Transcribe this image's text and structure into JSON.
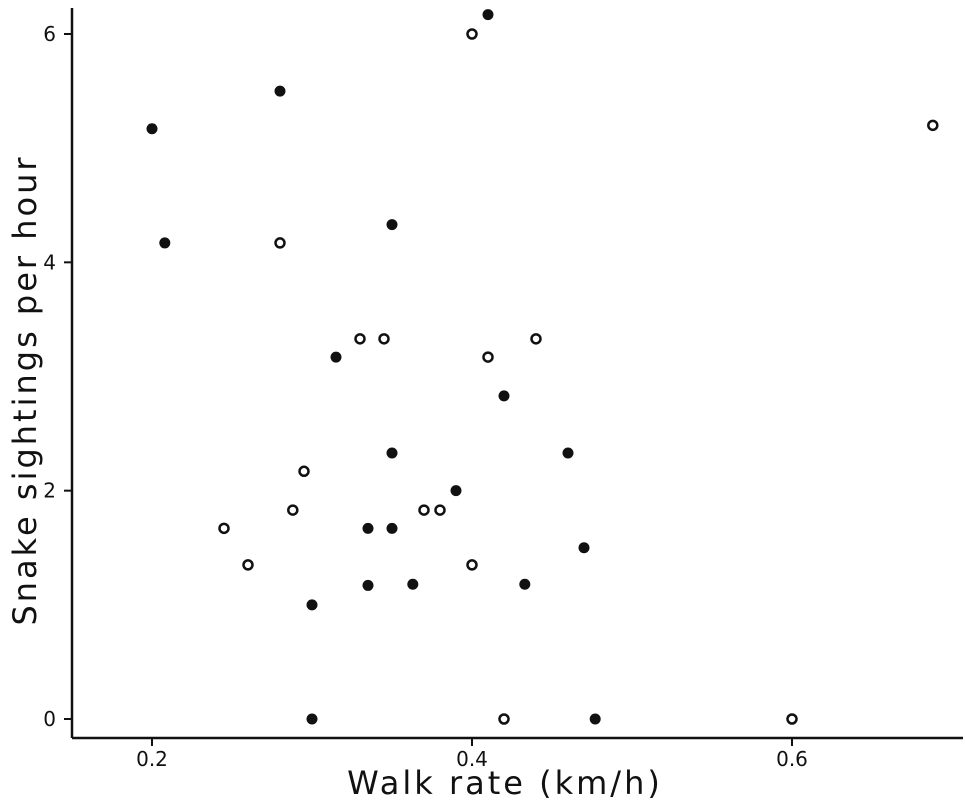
{
  "chart_data": {
    "type": "scatter",
    "title": "",
    "xlabel": "Walk rate (km/h)",
    "ylabel": "Snake sightings per hour",
    "xlim": [
      0.15,
      0.7
    ],
    "ylim": [
      -0.15,
      6.2
    ],
    "x_ticks": [
      0.2,
      0.4,
      0.6
    ],
    "x_tick_labels": [
      "0.2",
      "0.4",
      "0.6"
    ],
    "y_ticks": [
      0,
      2,
      4,
      6
    ],
    "y_tick_labels": [
      "0",
      "2",
      "4",
      "6"
    ],
    "grid": false,
    "series": [
      {
        "marker": "filled-circle",
        "color": "#111111",
        "points": [
          [
            0.2,
            5.17
          ],
          [
            0.208,
            4.17
          ],
          [
            0.28,
            5.5
          ],
          [
            0.315,
            3.17
          ],
          [
            0.35,
            4.33
          ],
          [
            0.41,
            6.17
          ],
          [
            0.42,
            2.83
          ],
          [
            0.35,
            2.33
          ],
          [
            0.46,
            2.33
          ],
          [
            0.39,
            2.0
          ],
          [
            0.335,
            1.67
          ],
          [
            0.35,
            1.67
          ],
          [
            0.47,
            1.5
          ],
          [
            0.335,
            1.17
          ],
          [
            0.363,
            1.18
          ],
          [
            0.433,
            1.18
          ],
          [
            0.3,
            1.0
          ],
          [
            0.3,
            0.0
          ],
          [
            0.477,
            0.0
          ]
        ]
      },
      {
        "marker": "open-circle",
        "color": "#111111",
        "points": [
          [
            0.4,
            6.0
          ],
          [
            0.688,
            5.2
          ],
          [
            0.28,
            4.17
          ],
          [
            0.33,
            3.33
          ],
          [
            0.345,
            3.33
          ],
          [
            0.44,
            3.33
          ],
          [
            0.41,
            3.17
          ],
          [
            0.295,
            2.17
          ],
          [
            0.288,
            1.83
          ],
          [
            0.37,
            1.83
          ],
          [
            0.38,
            1.83
          ],
          [
            0.245,
            1.67
          ],
          [
            0.26,
            1.35
          ],
          [
            0.4,
            1.35
          ],
          [
            0.42,
            0.0
          ],
          [
            0.6,
            0.0
          ]
        ]
      }
    ]
  }
}
